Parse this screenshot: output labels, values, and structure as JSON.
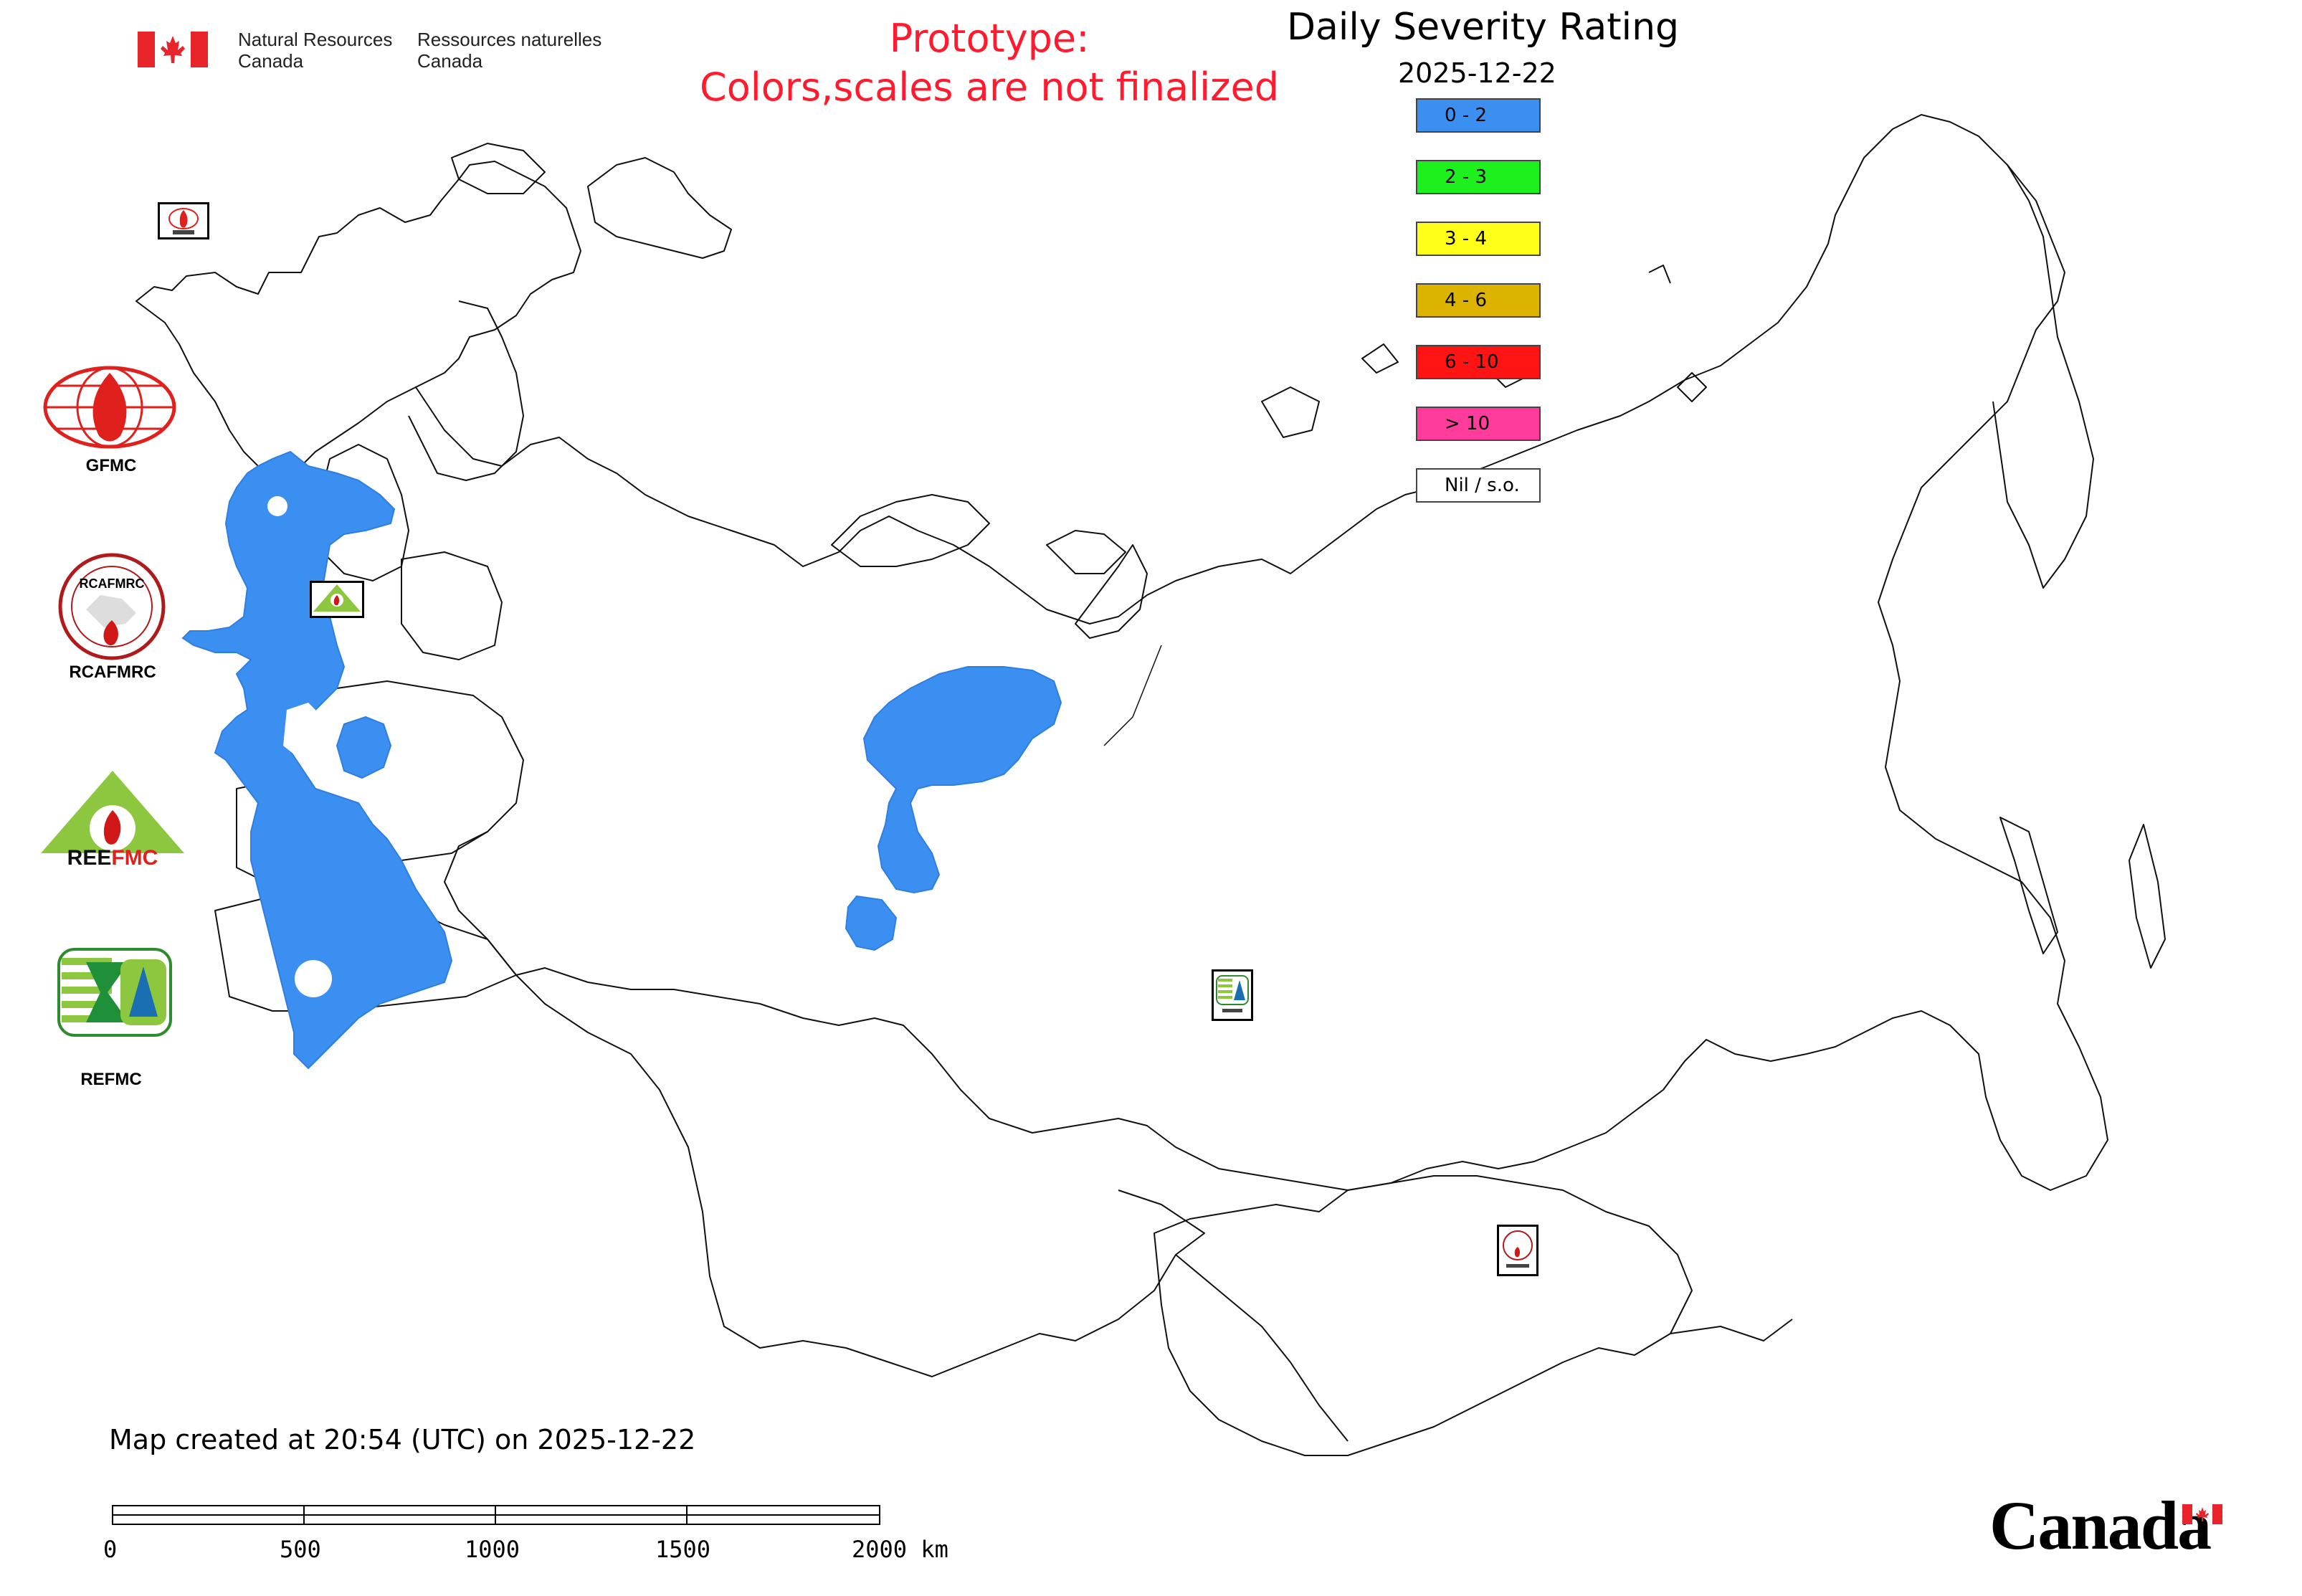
{
  "header": {
    "nrcan_en_1": "Natural Resources",
    "nrcan_en_2": "Canada",
    "nrcan_fr_1": "Ressources naturelles",
    "nrcan_fr_2": "Canada",
    "prototype_line1": "Prototype:",
    "prototype_line2": "Colors,scales are not finalized",
    "title": "Daily Severity Rating",
    "date": "2025-12-22"
  },
  "legend": [
    {
      "label": "0 - 2",
      "color": "#3b8ff0"
    },
    {
      "label": "2 - 3",
      "color": "#1ef01e"
    },
    {
      "label": "3 - 4",
      "color": "#ffff1a"
    },
    {
      "label": "4 - 6",
      "color": "#dcb400"
    },
    {
      "label": "6 - 10",
      "color": "#ff1414"
    },
    {
      "label": "> 10",
      "color": "#ff3c9c"
    },
    {
      "label": "Nil / s.o.",
      "color": "#ffffff"
    }
  ],
  "logos": {
    "gfmc": "GFMC",
    "rcafmrc": "RCAFMRC",
    "rcafmrc_inner": "RCAFMRC",
    "reefmc": "REEFMC",
    "reefmc_ree": "REE",
    "reefmc_fmc": "FMC",
    "refmc": "REFMC"
  },
  "map_markers": [
    {
      "name": "gfmc-marker-icon",
      "label": "GFMC"
    },
    {
      "name": "reefmc-marker-icon",
      "label": "REEFMC"
    },
    {
      "name": "refmc-marker-icon",
      "label": "REFMC"
    },
    {
      "name": "rcafmrc-marker-icon",
      "label": "RCAFMRC"
    }
  ],
  "footer": {
    "created": "Map created at 20:54 (UTC) on 2025-12-22",
    "scale_labels": [
      "0",
      "500",
      "1000",
      "1500",
      "2000 km"
    ],
    "wordmark": "Canada"
  },
  "colors": {
    "severity_fill": "#3b8ff0",
    "prototype_text": "#ff1a2e",
    "canada_red": "#e8242b"
  }
}
